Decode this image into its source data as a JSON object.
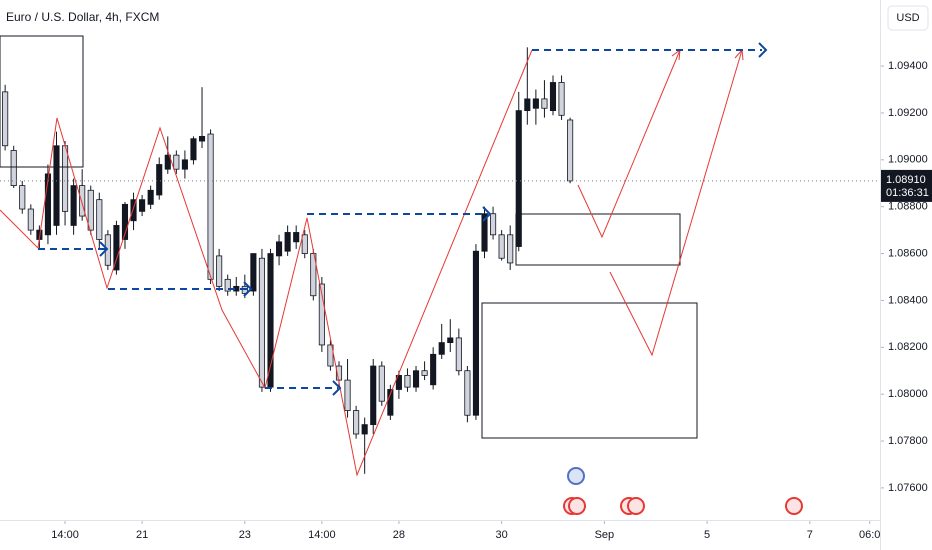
{
  "chart_data": {
    "type": "candlestick",
    "title": "Euro / U.S. Dollar, 4h, FXCM",
    "currency": "USD",
    "price_label": {
      "value": 1.0891,
      "label": "1.08910"
    },
    "countdown": "01:36:31",
    "bull_color": "#131722",
    "bear_color": "#d1d4dc",
    "x": [
      0,
      1,
      2,
      3,
      4,
      5,
      6,
      7,
      8,
      9,
      10,
      11,
      12,
      13,
      14,
      15,
      16,
      17,
      18,
      19,
      20,
      21,
      22,
      23,
      24,
      25,
      26,
      27,
      28,
      29,
      30,
      31,
      32,
      33,
      34,
      35,
      36,
      37,
      38,
      39,
      40,
      41,
      42,
      43,
      44,
      45,
      46,
      47,
      48,
      49,
      50,
      51,
      52,
      53,
      54,
      55,
      56,
      57,
      58,
      59,
      60,
      61,
      62,
      63,
      64,
      65,
      66
    ],
    "open": [
      1.0929,
      1.0904,
      1.0889,
      1.0879,
      1.0866,
      1.0868,
      1.0872,
      1.0906,
      1.0872,
      1.0889,
      1.0887,
      1.0883,
      1.0868,
      1.0853,
      1.0866,
      1.0874,
      1.0878,
      1.0881,
      1.0885,
      1.0896,
      1.0902,
      1.0896,
      1.09,
      1.0908,
      1.0911,
      1.0859,
      1.0849,
      1.0844,
      1.0846,
      1.0844,
      1.0858,
      1.0803,
      1.0859,
      1.0861,
      1.0865,
      1.0868,
      1.086,
      1.0847,
      1.0821,
      1.0812,
      1.0806,
      1.0793,
      1.0783,
      1.0787,
      1.0812,
      1.0791,
      1.0802,
      1.0808,
      1.0803,
      1.081,
      1.0804,
      1.0817,
      1.0822,
      1.0824,
      1.081,
      1.0791,
      1.0861,
      1.0877,
      1.0868,
      1.0868,
      1.0863,
      1.0921,
      1.0922,
      1.0926,
      1.0921,
      1.0933,
      1.0917
    ],
    "high": [
      1.0932,
      1.0906,
      1.0891,
      1.0881,
      1.0872,
      1.0898,
      1.0912,
      1.0908,
      1.0892,
      1.0896,
      1.0889,
      1.0886,
      1.087,
      1.0874,
      1.0882,
      1.0886,
      1.0885,
      1.0889,
      1.0901,
      1.091,
      1.0904,
      1.0904,
      1.091,
      1.0931,
      1.0913,
      1.0862,
      1.0851,
      1.085,
      1.0851,
      1.086,
      1.0862,
      1.0862,
      1.0868,
      1.0872,
      1.0872,
      1.087,
      1.0862,
      1.085,
      1.0823,
      1.0814,
      1.0815,
      1.0795,
      1.079,
      1.0815,
      1.0814,
      1.0804,
      1.081,
      1.0811,
      1.0812,
      1.0814,
      1.082,
      1.083,
      1.0832,
      1.0828,
      1.0812,
      1.0864,
      1.088,
      1.088,
      1.087,
      1.0872,
      1.0929,
      1.0948,
      1.093,
      1.0934,
      1.0936,
      1.0936,
      1.0918
    ],
    "low": [
      1.0904,
      1.0888,
      1.0877,
      1.0868,
      1.0862,
      1.0864,
      1.0868,
      1.0872,
      1.0868,
      1.0874,
      1.0868,
      1.0862,
      1.0853,
      1.0851,
      1.0862,
      1.087,
      1.0876,
      1.0879,
      1.0883,
      1.0894,
      1.0894,
      1.0892,
      1.0898,
      1.0905,
      1.0847,
      1.0844,
      1.0842,
      1.0842,
      1.0841,
      1.0842,
      1.0801,
      1.0801,
      1.0855,
      1.0859,
      1.0862,
      1.0858,
      1.084,
      1.0818,
      1.081,
      1.0803,
      1.079,
      1.0781,
      1.0766,
      1.0783,
      1.0795,
      1.0789,
      1.0798,
      1.0801,
      1.0801,
      1.0806,
      1.0802,
      1.0815,
      1.0818,
      1.0808,
      1.0788,
      1.0789,
      1.0858,
      1.0866,
      1.0857,
      1.0853,
      1.0861,
      1.0915,
      1.0915,
      1.0918,
      1.0919,
      1.0917,
      1.089
    ],
    "close": [
      1.0906,
      1.0889,
      1.0879,
      1.087,
      1.087,
      1.0894,
      1.0906,
      1.0878,
      1.0889,
      1.0876,
      1.087,
      1.0866,
      1.0855,
      1.0872,
      1.0881,
      1.0883,
      1.0883,
      1.0887,
      1.0898,
      1.0902,
      1.0896,
      1.09,
      1.0909,
      1.091,
      1.0849,
      1.0846,
      1.0844,
      1.0846,
      1.0843,
      1.086,
      1.0803,
      1.086,
      1.0865,
      1.0869,
      1.0869,
      1.086,
      1.0842,
      1.0821,
      1.0812,
      1.0806,
      1.0793,
      1.0783,
      1.0787,
      1.0812,
      1.0797,
      1.0802,
      1.0808,
      1.0803,
      1.081,
      1.0808,
      1.0817,
      1.0822,
      1.0824,
      1.081,
      1.0791,
      1.0861,
      1.0877,
      1.0868,
      1.0858,
      1.0856,
      1.0921,
      1.0926,
      1.0926,
      1.0922,
      1.0933,
      1.0919,
      1.0891
    ],
    "xlim": [
      -0.6,
      102.2
    ],
    "xticks": [
      {
        "value": 7,
        "label": "14:00"
      },
      {
        "value": 16,
        "label": "21"
      },
      {
        "value": 28,
        "label": "23"
      },
      {
        "value": 37,
        "label": "14:00"
      },
      {
        "value": 46,
        "label": "28"
      },
      {
        "value": 58,
        "label": "30"
      },
      {
        "value": 70,
        "label": "Sep"
      },
      {
        "value": 82,
        "label": "5"
      },
      {
        "value": 94,
        "label": "7"
      },
      {
        "value": 101,
        "label": "06:0"
      }
    ],
    "ylim": [
      1.07463,
      1.09682
    ],
    "yticks": [
      {
        "value": 1.076,
        "label": "1.07600"
      },
      {
        "value": 1.078,
        "label": "1.07800"
      },
      {
        "value": 1.08,
        "label": "1.08000"
      },
      {
        "value": 1.082,
        "label": "1.08200"
      },
      {
        "value": 1.084,
        "label": "1.08400"
      },
      {
        "value": 1.086,
        "label": "1.08600"
      },
      {
        "value": 1.088,
        "label": "1.08800"
      },
      {
        "value": 1.09,
        "label": "1.09000"
      },
      {
        "value": 1.092,
        "label": "1.09200"
      },
      {
        "value": 1.094,
        "label": "1.09400"
      }
    ]
  }
}
